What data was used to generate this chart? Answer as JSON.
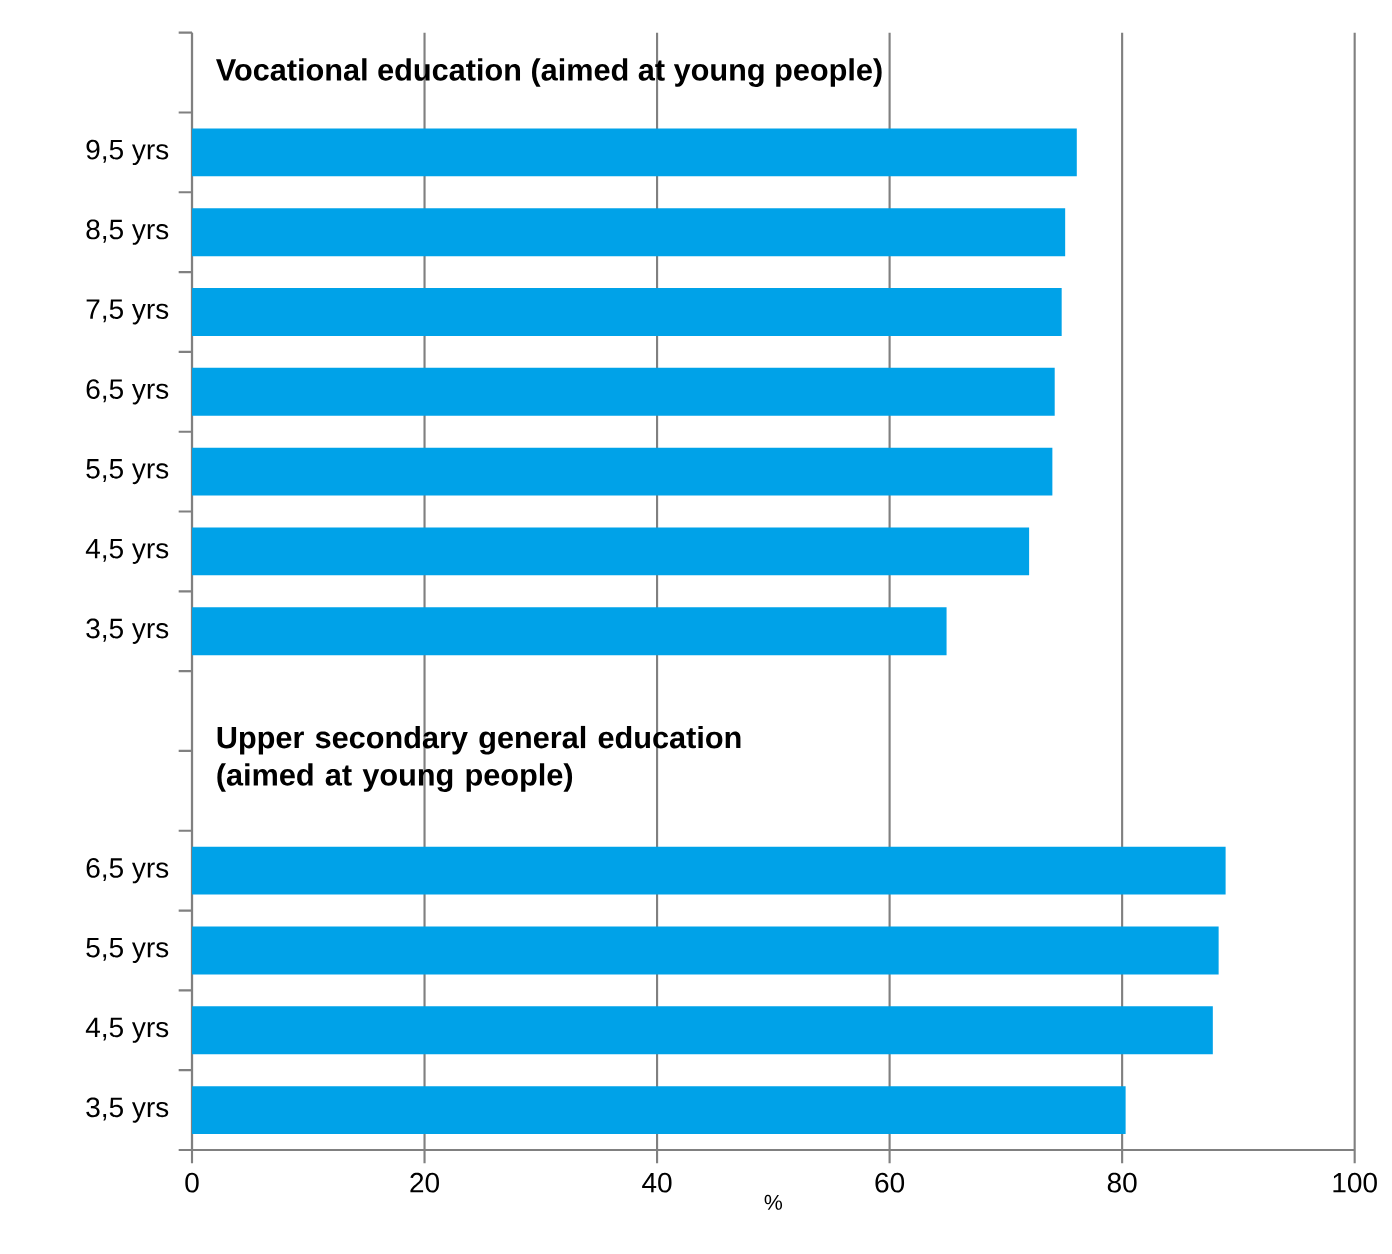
{
  "chart_data": {
    "type": "bar",
    "orientation": "horizontal",
    "xlabel": "%",
    "categories": [
      null,
      "9,5 yrs",
      "8,5 yrs",
      "7,5 yrs",
      "6,5 yrs",
      "5,5 yrs",
      "4,5 yrs",
      "3,5 yrs",
      null,
      null,
      "6,5 yrs",
      "5,5 yrs",
      "4,5 yrs",
      "3,5 yrs"
    ],
    "values": [
      null,
      76.1,
      75.1,
      74.8,
      74.2,
      74.0,
      72.0,
      64.9,
      null,
      null,
      88.9,
      88.3,
      87.8,
      80.3
    ],
    "color": "#00a2e8",
    "xlim": [
      0,
      100
    ],
    "xticks": [
      0,
      20,
      40,
      60,
      80,
      100
    ],
    "grid": "x",
    "annotations": [
      "Vocational education (aimed at young people)",
      "Upper secondary general education (aimed at young people)"
    ]
  }
}
